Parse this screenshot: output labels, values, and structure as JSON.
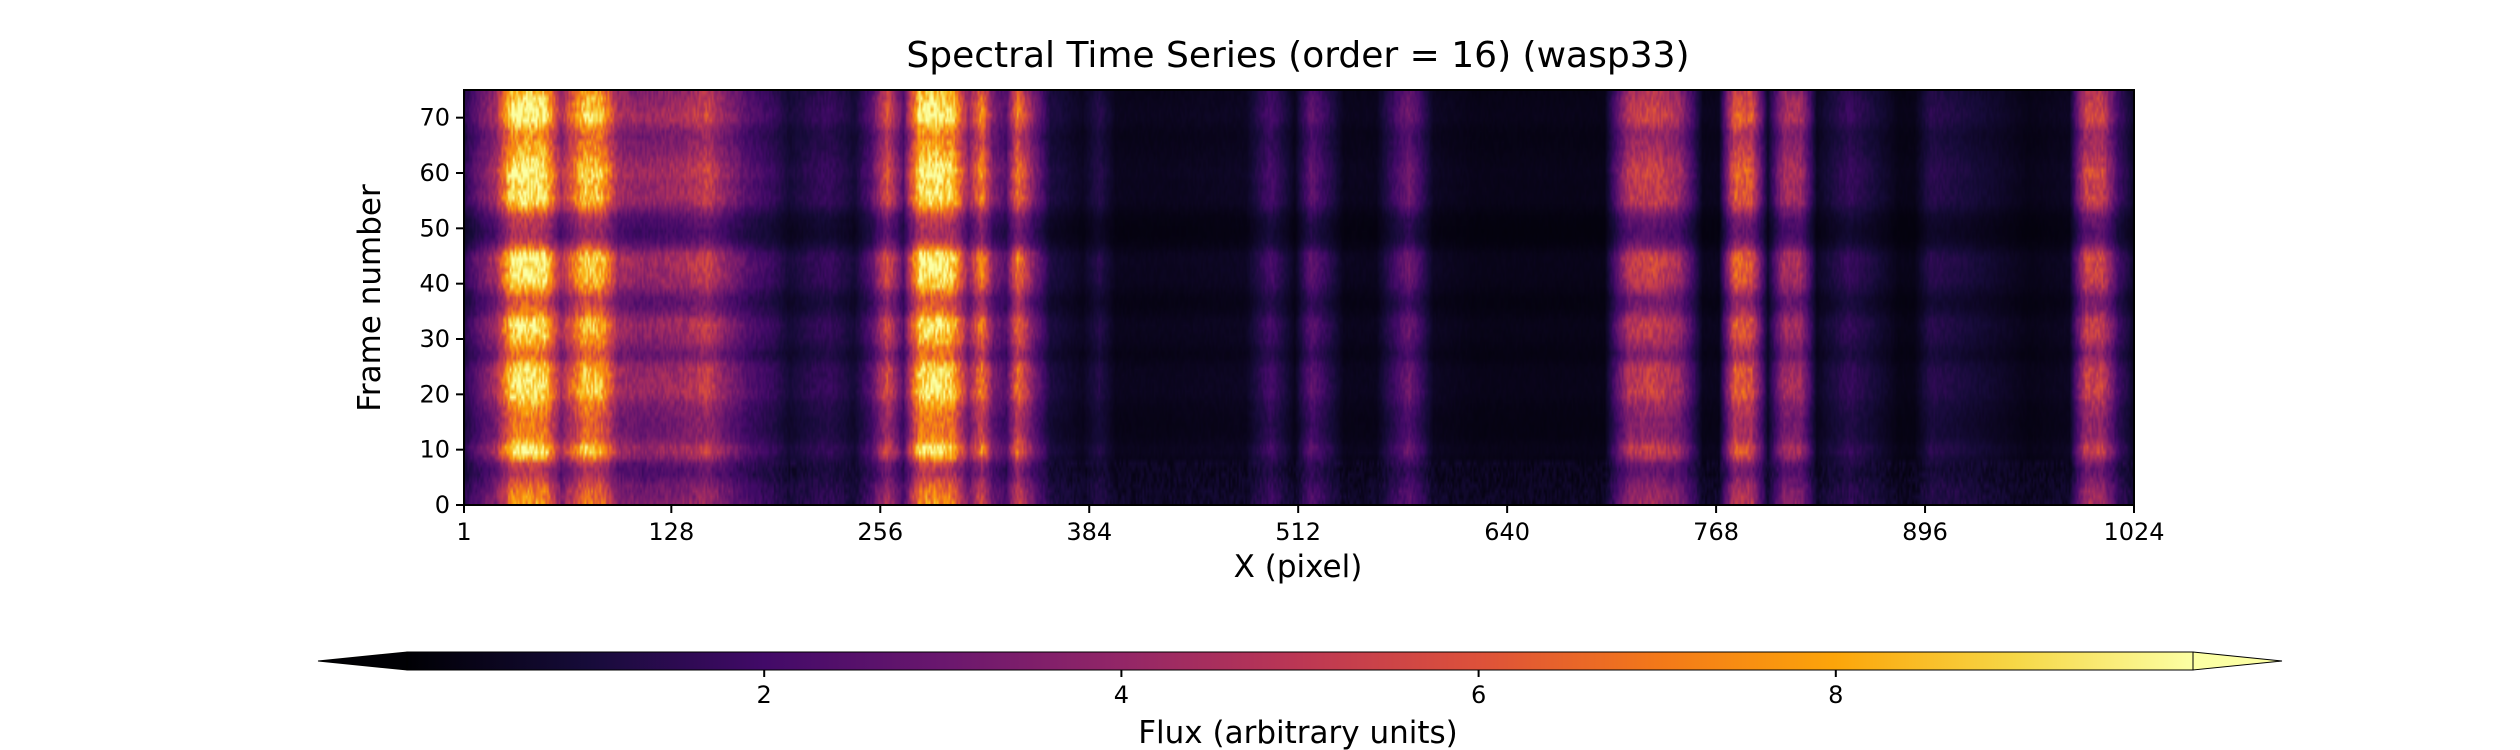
{
  "chart_data": {
    "type": "heatmap",
    "title": "Spectral Time Series (order = 16) (wasp33)",
    "xlabel": "X (pixel)",
    "ylabel": "Frame number",
    "xlim": [
      1,
      1024
    ],
    "ylim": [
      0,
      75
    ],
    "xticks": [
      "1",
      "128",
      "256",
      "384",
      "512",
      "640",
      "768",
      "896",
      "1024"
    ],
    "xtick_values": [
      1,
      128,
      256,
      384,
      512,
      640,
      768,
      896,
      1024
    ],
    "yticks": [
      "0",
      "10",
      "20",
      "30",
      "40",
      "50",
      "60",
      "70"
    ],
    "ytick_values": [
      0,
      10,
      20,
      30,
      40,
      50,
      60,
      70
    ],
    "colormap": "inferno",
    "colorbar": {
      "label": "Flux (arbitrary units)",
      "range": [
        0,
        10
      ],
      "extend": "both",
      "ticks": [
        "2",
        "4",
        "6",
        "8"
      ],
      "tick_values": [
        2,
        4,
        6,
        8
      ]
    },
    "column_flux_profile": {
      "x": [
        1,
        10,
        20,
        30,
        40,
        50,
        60,
        75,
        85,
        95,
        110,
        120,
        135,
        150,
        160,
        175,
        190,
        200,
        215,
        225,
        240,
        250,
        260,
        270,
        280,
        290,
        300,
        310,
        318,
        325,
        333,
        340,
        350,
        360,
        380,
        390,
        400,
        430,
        480,
        495,
        510,
        520,
        540,
        560,
        580,
        595,
        620,
        660,
        700,
        715,
        730,
        745,
        760,
        770,
        780,
        790,
        800,
        810,
        820,
        830,
        850,
        880,
        890,
        900,
        960,
        985,
        995,
        1005,
        1015,
        1024
      ],
      "flux": [
        1.5,
        3.0,
        4.5,
        9.5,
        10.0,
        9.5,
        4.5,
        9.0,
        8.5,
        4.5,
        4.0,
        4.2,
        4.5,
        5.5,
        4.0,
        2.5,
        1.8,
        1.0,
        1.6,
        1.8,
        1.0,
        2.5,
        6.0,
        2.5,
        9.5,
        9.8,
        9.0,
        4.0,
        7.5,
        3.5,
        2.5,
        7.0,
        3.5,
        1.2,
        0.6,
        1.4,
        0.5,
        0.5,
        0.6,
        2.2,
        0.5,
        2.8,
        0.5,
        0.5,
        3.2,
        0.6,
        0.4,
        0.4,
        0.4,
        5.0,
        5.5,
        4.5,
        0.5,
        0.5,
        6.5,
        6.0,
        0.8,
        4.5,
        4.5,
        0.6,
        1.8,
        0.4,
        0.4,
        1.5,
        0.4,
        0.6,
        5.5,
        5.5,
        2.0,
        0.8
      ]
    },
    "frame_modulation": {
      "frame": [
        0,
        3,
        6,
        8,
        10,
        12,
        15,
        18,
        20,
        25,
        27,
        30,
        33,
        35,
        37,
        38,
        40,
        45,
        47,
        49,
        52,
        55,
        58,
        60,
        63,
        67,
        70,
        73,
        75
      ],
      "factor": [
        0.95,
        0.85,
        0.55,
        0.75,
        1.05,
        0.75,
        0.7,
        0.8,
        1.0,
        0.95,
        0.65,
        0.9,
        1.0,
        0.7,
        0.6,
        0.7,
        0.95,
        1.05,
        0.6,
        0.45,
        0.55,
        1.0,
        0.95,
        1.05,
        0.9,
        0.75,
        1.05,
        0.95,
        0.85
      ]
    }
  }
}
